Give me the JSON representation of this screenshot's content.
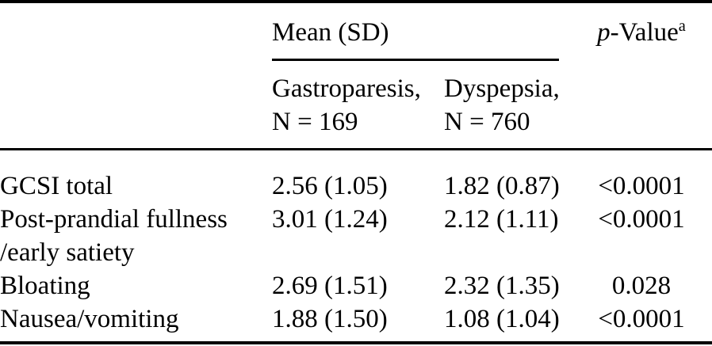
{
  "page": {
    "background_color": "#ffffff",
    "text_color": "#000000",
    "rule_color": "#000000"
  },
  "table": {
    "header": {
      "mean_sd_label": "Mean (SD)",
      "p_value_italic": "p",
      "p_value_rest": "-Value",
      "p_value_superscript": "a",
      "gastroparesis": {
        "label": "Gastroparesis,",
        "n": "N = 169"
      },
      "dyspepsia": {
        "label": "Dyspepsia,",
        "n": "N = 760"
      }
    },
    "rows": [
      {
        "label": "GCSI total",
        "gastroparesis": "2.56 (1.05)",
        "dyspepsia": "1.82 (0.87)",
        "p_value": "<0.0001"
      },
      {
        "label": "Post-prandial fullness",
        "label_line2": "/early satiety",
        "gastroparesis": "3.01 (1.24)",
        "dyspepsia": "2.12 (1.11)",
        "p_value": "<0.0001"
      },
      {
        "label": "Bloating",
        "gastroparesis": "2.69 (1.51)",
        "dyspepsia": "2.32 (1.35)",
        "p_value": "0.028"
      },
      {
        "label": "Nausea/vomiting",
        "gastroparesis": "1.88 (1.50)",
        "dyspepsia": "1.08 (1.04)",
        "p_value": "<0.0001"
      }
    ]
  }
}
